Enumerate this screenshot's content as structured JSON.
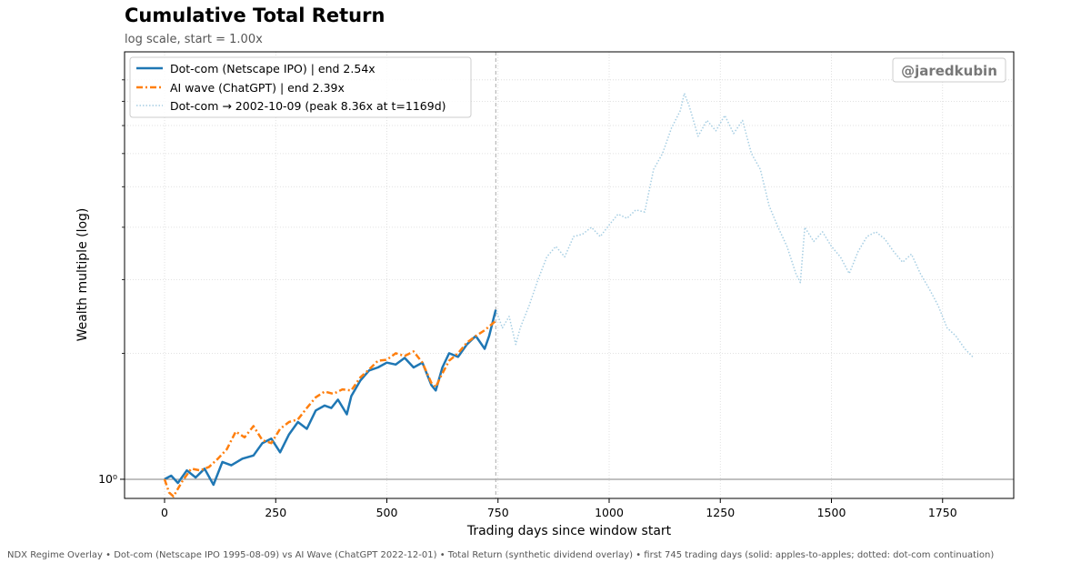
{
  "title": "Cumulative Total Return",
  "subtitle": "log scale, start = 1.00x",
  "footer": "NDX Regime Overlay  •  Dot-com (Netscape IPO 1995-08-09) vs AI Wave (ChatGPT 2022-12-01)  •  Total Return (synthetic dividend overlay)  •  first 745 trading days  (solid: apples-to-apples; dotted: dot-com continuation)",
  "watermark": "@jaredkubin",
  "colors": {
    "dotcom": "#1f77b4",
    "ai": "#ff7f0e",
    "continuation": "#a6cee3",
    "grid": "#d8d8d8",
    "baseline": "#808080",
    "vline": "#aaaaaa"
  },
  "chart_data": {
    "type": "line",
    "xlabel": "Trading days since window start",
    "ylabel": "Wealth multiple (log)",
    "xlim": [
      -90,
      1910
    ],
    "ylim": [
      0.9,
      10.5
    ],
    "yscale": "log",
    "grid": true,
    "legend_position": "top-left",
    "x_ticks": [
      0,
      250,
      500,
      750,
      1000,
      1250,
      1500,
      1750
    ],
    "x_tick_labels": [
      "0",
      "250",
      "500",
      "750",
      "1000",
      "1250",
      "1500",
      "1750"
    ],
    "y_ticks": [
      1
    ],
    "y_tick_labels": [
      "10⁰"
    ],
    "y_minor_ticks": [
      2,
      3,
      4,
      5,
      6,
      7,
      8,
      9
    ],
    "reference_lines": {
      "horizontal_y": 1.0,
      "vertical_x": 745
    },
    "series": [
      {
        "name": "Dot-com (Netscape IPO) | end 2.54x",
        "style": "solid",
        "x": [
          0,
          15,
          30,
          50,
          70,
          90,
          110,
          130,
          150,
          175,
          200,
          220,
          240,
          260,
          280,
          300,
          320,
          340,
          360,
          375,
          390,
          410,
          420,
          440,
          460,
          480,
          500,
          520,
          540,
          560,
          580,
          600,
          610,
          625,
          640,
          660,
          680,
          700,
          720,
          730,
          745
        ],
        "values": [
          1.0,
          1.02,
          0.98,
          1.05,
          1.01,
          1.06,
          0.97,
          1.1,
          1.08,
          1.12,
          1.14,
          1.22,
          1.25,
          1.16,
          1.28,
          1.37,
          1.32,
          1.46,
          1.5,
          1.48,
          1.55,
          1.43,
          1.58,
          1.72,
          1.82,
          1.85,
          1.9,
          1.88,
          1.95,
          1.85,
          1.9,
          1.68,
          1.63,
          1.85,
          2.0,
          1.96,
          2.1,
          2.2,
          2.05,
          2.2,
          2.54
        ]
      },
      {
        "name": "AI wave (ChatGPT) | end 2.39x",
        "style": "dashdot",
        "x": [
          0,
          10,
          20,
          40,
          60,
          80,
          100,
          120,
          140,
          160,
          180,
          200,
          220,
          240,
          260,
          280,
          300,
          320,
          340,
          360,
          380,
          400,
          420,
          440,
          460,
          480,
          500,
          520,
          540,
          560,
          580,
          600,
          610,
          620,
          640,
          660,
          680,
          700,
          720,
          745
        ],
        "values": [
          1.0,
          0.93,
          0.91,
          0.99,
          1.06,
          1.05,
          1.07,
          1.12,
          1.18,
          1.3,
          1.26,
          1.34,
          1.24,
          1.22,
          1.32,
          1.37,
          1.39,
          1.48,
          1.57,
          1.62,
          1.6,
          1.64,
          1.63,
          1.75,
          1.83,
          1.92,
          1.93,
          2.0,
          1.97,
          2.02,
          1.9,
          1.7,
          1.66,
          1.75,
          1.92,
          2.0,
          2.12,
          2.2,
          2.27,
          2.39
        ]
      },
      {
        "name": "Dot-com → 2002-10-09 (peak 8.36x at t=1169d)",
        "style": "dotted",
        "x": [
          745,
          760,
          775,
          790,
          800,
          820,
          840,
          860,
          880,
          900,
          920,
          940,
          960,
          980,
          1000,
          1020,
          1040,
          1060,
          1080,
          1100,
          1120,
          1140,
          1160,
          1169,
          1180,
          1200,
          1220,
          1240,
          1260,
          1280,
          1300,
          1320,
          1340,
          1360,
          1380,
          1400,
          1420,
          1430,
          1440,
          1460,
          1480,
          1500,
          1520,
          1540,
          1560,
          1580,
          1600,
          1620,
          1640,
          1660,
          1680,
          1700,
          1720,
          1740,
          1760,
          1780,
          1800,
          1820
        ],
        "values": [
          2.54,
          2.3,
          2.45,
          2.1,
          2.3,
          2.6,
          3.0,
          3.4,
          3.6,
          3.4,
          3.8,
          3.85,
          4.0,
          3.8,
          4.05,
          4.3,
          4.2,
          4.4,
          4.35,
          5.5,
          6.0,
          6.9,
          7.6,
          8.36,
          7.8,
          6.6,
          7.2,
          6.8,
          7.4,
          6.7,
          7.2,
          6.0,
          5.5,
          4.5,
          4.0,
          3.6,
          3.1,
          2.95,
          4.0,
          3.7,
          3.9,
          3.6,
          3.4,
          3.1,
          3.5,
          3.8,
          3.9,
          3.75,
          3.5,
          3.3,
          3.45,
          3.1,
          2.85,
          2.6,
          2.3,
          2.2,
          2.05,
          1.95
        ]
      }
    ]
  }
}
